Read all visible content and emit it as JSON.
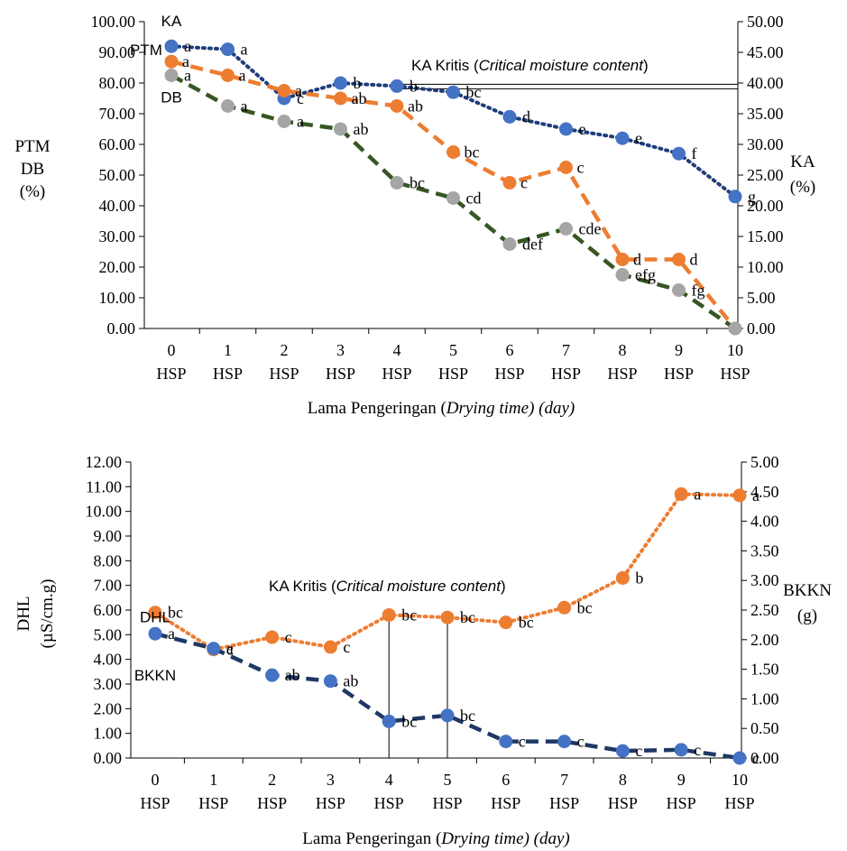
{
  "chart_data": [
    {
      "type": "line",
      "x_tick_labels": [
        "0",
        "1",
        "2",
        "3",
        "4",
        "5",
        "6",
        "7",
        "8",
        "9",
        "10"
      ],
      "x_tick_suffix": "HSP",
      "xlabel_main": "Lama Pengeringan (",
      "xlabel_italic": "Drying time) (day)",
      "ylabel_left": [
        "PTM",
        "DB",
        "(%)"
      ],
      "ylabel_right": [
        "KA",
        "(%)"
      ],
      "ylim_left": [
        0,
        100
      ],
      "ylim_right": [
        0,
        50
      ],
      "left_ticks": [
        "0.00",
        "10.00",
        "20.00",
        "30.00",
        "40.00",
        "50.00",
        "60.00",
        "70.00",
        "80.00",
        "90.00",
        "100.00"
      ],
      "right_ticks": [
        "0.00",
        "5.00",
        "10.00",
        "15.00",
        "20.00",
        "25.00",
        "30.00",
        "35.00",
        "40.00",
        "45.00",
        "50.00"
      ],
      "grid": false,
      "series": [
        {
          "name": "KA",
          "axis": "right",
          "style": "dotted",
          "line_color": "#1f3d7a",
          "marker_color": "#4472c4",
          "values": [
            46,
            45.5,
            37.5,
            40,
            39.5,
            38.5,
            34.5,
            32.5,
            31,
            28.5,
            21.5
          ],
          "letters": [
            "a",
            "a",
            "c",
            "b",
            "b",
            "bc",
            "d",
            "e",
            "e",
            "f",
            "g"
          ]
        },
        {
          "name": "PTM",
          "axis": "left",
          "style": "dashed",
          "line_color": "#ed7d31",
          "marker_color": "#ed7d31",
          "values": [
            87,
            82.5,
            77.5,
            75,
            72.5,
            57.5,
            47.5,
            52.5,
            22.5,
            22.5,
            0
          ],
          "letters": [
            "a",
            "a",
            "a",
            "ab",
            "ab",
            "bc",
            "c",
            "c",
            "d",
            "d",
            ""
          ]
        },
        {
          "name": "DB",
          "axis": "left",
          "style": "dashed",
          "line_color": "#375623",
          "marker_color": "#a5a5a5",
          "values": [
            82.5,
            72.5,
            67.5,
            65,
            47.5,
            42.5,
            27.5,
            32.5,
            17.5,
            12.5,
            0
          ],
          "letters": [
            "a",
            "a",
            "a",
            "ab",
            "bc",
            "cd",
            "def",
            "cde",
            "efg",
            "fg",
            ""
          ]
        }
      ],
      "annotation": {
        "text": "KA Kritis (",
        "italic": "Critical moisture content",
        "close": ")",
        "y_right": 39.5
      }
    },
    {
      "type": "line",
      "x_tick_labels": [
        "0",
        "1",
        "2",
        "3",
        "4",
        "5",
        "6",
        "7",
        "8",
        "9",
        "10"
      ],
      "x_tick_suffix": "HSP",
      "xlabel_main": "Lama Pengeringan (",
      "xlabel_italic": "Drying time) (day)",
      "ylabel_left": [
        "DHL",
        "(µS/cm.g)"
      ],
      "ylabel_right": [
        "BKKN",
        "(g)"
      ],
      "ylim_left": [
        0,
        12
      ],
      "ylim_right": [
        0,
        5
      ],
      "left_ticks": [
        "0.00",
        "1.00",
        "2.00",
        "3.00",
        "4.00",
        "5.00",
        "6.00",
        "7.00",
        "8.00",
        "9.00",
        "10.00",
        "11.00",
        "12.00"
      ],
      "right_ticks": [
        "0.00",
        "0.50",
        "1.00",
        "1.50",
        "2.00",
        "2.50",
        "3.00",
        "3.50",
        "4.00",
        "4.50",
        "5.00"
      ],
      "grid": false,
      "series": [
        {
          "name": "DHL",
          "axis": "left",
          "style": "dotted",
          "line_color": "#ed7d31",
          "marker_color": "#ed7d31",
          "values": [
            5.9,
            4.4,
            4.9,
            4.5,
            5.8,
            5.7,
            5.5,
            6.1,
            7.3,
            10.7,
            10.65
          ],
          "letters": [
            "bc",
            "c",
            "c",
            "c",
            "bc",
            "bc",
            "bc",
            "bc",
            "b",
            "a",
            "a"
          ]
        },
        {
          "name": "BKKN",
          "axis": "right",
          "style": "dashed",
          "line_color": "#1f3864",
          "marker_color": "#4472c4",
          "values": [
            2.1,
            1.85,
            1.4,
            1.3,
            0.62,
            0.72,
            0.28,
            0.28,
            0.12,
            0.14,
            0
          ],
          "letters": [
            "a",
            "a",
            "ab",
            "ab",
            "bc",
            "bc",
            "c",
            "c",
            "c",
            "c",
            "c"
          ]
        }
      ],
      "annotation": {
        "text": "KA Kritis (",
        "italic": "Critical moisture content",
        "close": ")",
        "x_lines": [
          4,
          5
        ]
      }
    }
  ]
}
